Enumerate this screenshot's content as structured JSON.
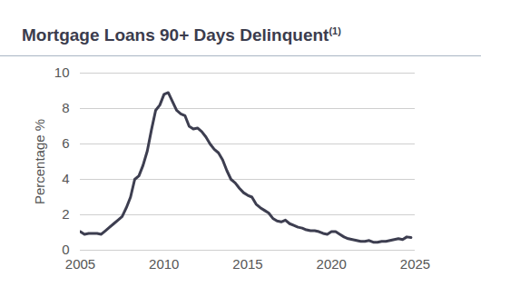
{
  "chart_data": {
    "type": "line",
    "title": "Mortgage Loans 90+ Days Delinquent",
    "title_superscript": "(1)",
    "y_label": "Percentage %",
    "color": "#3d3e50",
    "grid": true,
    "xlim": [
      2005,
      2025
    ],
    "xticks": [
      2005,
      2010,
      2015,
      2020,
      2025
    ],
    "ylim": [
      0,
      10
    ],
    "yticks": [
      0,
      2,
      4,
      6,
      8,
      10
    ],
    "x": [
      2005.0,
      2005.25,
      2005.5,
      2005.75,
      2006.0,
      2006.25,
      2006.5,
      2006.75,
      2007.0,
      2007.25,
      2007.5,
      2007.75,
      2008.0,
      2008.25,
      2008.5,
      2008.75,
      2009.0,
      2009.25,
      2009.5,
      2009.75,
      2010.0,
      2010.25,
      2010.5,
      2010.75,
      2011.0,
      2011.25,
      2011.5,
      2011.75,
      2012.0,
      2012.25,
      2012.5,
      2012.75,
      2013.0,
      2013.25,
      2013.5,
      2013.75,
      2014.0,
      2014.25,
      2014.5,
      2014.75,
      2015.0,
      2015.25,
      2015.5,
      2015.75,
      2016.0,
      2016.25,
      2016.5,
      2016.75,
      2017.0,
      2017.25,
      2017.5,
      2017.75,
      2018.0,
      2018.25,
      2018.5,
      2018.75,
      2019.0,
      2019.25,
      2019.5,
      2019.75,
      2020.0,
      2020.25,
      2020.5,
      2020.75,
      2021.0,
      2021.25,
      2021.5,
      2021.75,
      2022.0,
      2022.25,
      2022.5,
      2022.75,
      2023.0,
      2023.25,
      2023.5,
      2023.75,
      2024.0,
      2024.25,
      2024.5,
      2024.75
    ],
    "values": [
      1.05,
      0.9,
      0.95,
      0.95,
      0.95,
      0.9,
      1.1,
      1.3,
      1.5,
      1.7,
      1.9,
      2.4,
      3.0,
      4.0,
      4.2,
      4.8,
      5.6,
      6.8,
      7.9,
      8.2,
      8.8,
      8.9,
      8.4,
      7.9,
      7.7,
      7.6,
      7.0,
      6.85,
      6.9,
      6.7,
      6.4,
      6.0,
      5.7,
      5.5,
      5.1,
      4.5,
      4.0,
      3.8,
      3.5,
      3.25,
      3.1,
      3.0,
      2.6,
      2.4,
      2.25,
      2.1,
      1.8,
      1.65,
      1.6,
      1.7,
      1.5,
      1.4,
      1.3,
      1.25,
      1.15,
      1.1,
      1.1,
      1.05,
      0.95,
      0.9,
      1.05,
      1.05,
      0.9,
      0.75,
      0.65,
      0.6,
      0.55,
      0.5,
      0.5,
      0.55,
      0.45,
      0.45,
      0.5,
      0.5,
      0.55,
      0.6,
      0.65,
      0.6,
      0.75,
      0.72
    ]
  }
}
